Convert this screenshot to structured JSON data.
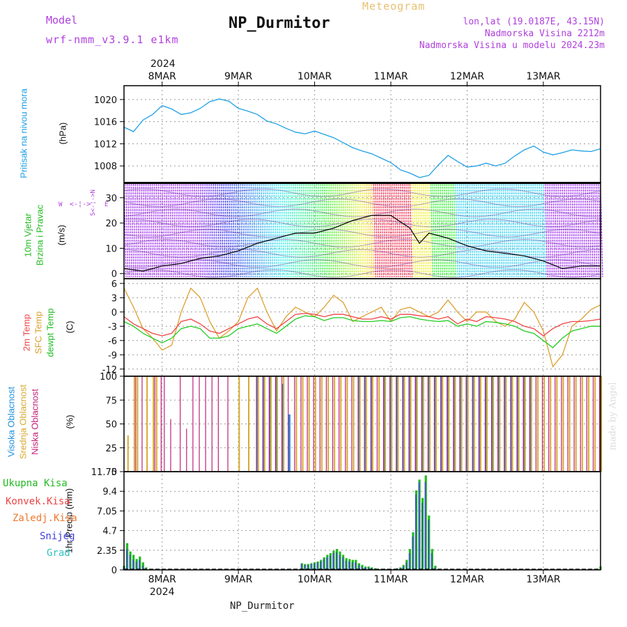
{
  "header": {
    "model_label": "Model",
    "model_name": "wrf-nmm_v3.9.1 e1km",
    "title": "NP_Durmitor",
    "meteogram_label": "Meteogram",
    "coords": "lon,lat (19.0187E, 43.15N)",
    "elevation": "Nadmorska Visina 2212m",
    "model_elevation": "Nadmorska Visina u modelu 2024.23m",
    "year": "2024",
    "bottom_station": "NP_Durmitor",
    "credit": "made by Angel"
  },
  "colors": {
    "pressure": "#1ea0e6",
    "temp2m": "#ee4444",
    "sfc_temp": "#dca030",
    "dewpt": "#22cc22",
    "high_cloud": "#1e90e0",
    "mid_cloud": "#d6aa30",
    "low_cloud": "#c0207a",
    "total_precip": "#22bb22",
    "convective": "#ee4444",
    "freezing": "#f07830",
    "snow": "#4040dd",
    "hail": "#30c0c0",
    "wind_legend": "#b040dd"
  },
  "x_axis": {
    "day_labels": [
      "8MAR",
      "9MAR",
      "10MAR",
      "11MAR",
      "12MAR",
      "13MAR"
    ],
    "year": "2024"
  },
  "panels": {
    "pressure": {
      "label": "Pritisak na nivou mora",
      "unit": "(hPa)",
      "ticks": [
        "1020",
        "1016",
        "1012",
        "1008"
      ]
    },
    "wind": {
      "label1": "10m Vjetar",
      "label2": "Brzina i Pravac",
      "unit": "(m/s)",
      "ticks": [
        "30",
        "20",
        "10",
        "0"
      ],
      "compass_w": "W",
      "compass_e": "E",
      "compass_n": "N",
      "compass_s": "S"
    },
    "temp": {
      "label1": "2m Temp",
      "label2": "SFC Temp",
      "label3": "dewpt Temp",
      "unit": "(C)",
      "ticks": [
        "6",
        "3",
        "0",
        "-3",
        "-6",
        "-9",
        "-12"
      ]
    },
    "cloud": {
      "label1": "Visoka Oblacnost",
      "label2": "Srednja Oblacnost",
      "label3": "Niska Oblacnost",
      "unit": "(%)",
      "ticks": [
        "100",
        "75",
        "50",
        "25",
        "0"
      ]
    },
    "precip": {
      "unit": "1hr Precip (mm)",
      "ticks": [
        "11.75",
        "9.4",
        "7.05",
        "4.7",
        "2.35",
        "0"
      ],
      "legend": [
        "Ukupna Kisa",
        "Konvek.Kisa",
        "Zaledj.Kisa",
        "Snijeg",
        "Grad"
      ]
    }
  },
  "chart_data": [
    {
      "type": "line",
      "title": "Pritisak na nivou mora",
      "ylabel": "(hPa)",
      "ylim": [
        1005,
        1022.5
      ],
      "x_hours": [
        0,
        3,
        6,
        9,
        12,
        15,
        18,
        21,
        24,
        27,
        30,
        33,
        36,
        39,
        42,
        45,
        48,
        51,
        54,
        57,
        60,
        63,
        66,
        69,
        72,
        75,
        78,
        81,
        84,
        87,
        90,
        93,
        96,
        99,
        102,
        105,
        108,
        111,
        114,
        117,
        120,
        123,
        126,
        129,
        132,
        135,
        138,
        141,
        144,
        147,
        150
      ],
      "series": [
        {
          "name": "Pritisak na nivou mora",
          "values": [
            1015,
            1014.2,
            1016.3,
            1017.3,
            1018.9,
            1018.3,
            1017.3,
            1017.6,
            1018.4,
            1019.6,
            1020.1,
            1019.7,
            1018.4,
            1017.9,
            1017.3,
            1016.1,
            1015.6,
            1014.8,
            1014.1,
            1013.8,
            1014.3,
            1013.7,
            1013.1,
            1012.2,
            1011.3,
            1010.7,
            1010.2,
            1009.4,
            1008.6,
            1007.3,
            1006.7,
            1005.9,
            1006.3,
            1008.2,
            1009.9,
            1008.8,
            1007.8,
            1008.0,
            1008.5,
            1008.0,
            1008.5,
            1009.8,
            1010.9,
            1011.6,
            1010.5,
            1010.0,
            1010.4,
            1010.9,
            1010.7,
            1010.6,
            1011.1
          ]
        }
      ]
    },
    {
      "type": "line",
      "title": "10m Vjetar Brzina i Pravac",
      "ylabel": "(m/s)",
      "ylim": [
        -2,
        36
      ],
      "x_hours": [
        0,
        6,
        12,
        18,
        24,
        30,
        36,
        42,
        48,
        54,
        60,
        66,
        72,
        78,
        84,
        90,
        93,
        96,
        102,
        108,
        114,
        120,
        126,
        132,
        138,
        144,
        150
      ],
      "series": [
        {
          "name": "Brzina",
          "values": [
            2,
            1,
            3,
            4,
            6,
            7,
            9,
            12,
            14,
            16,
            16,
            18,
            21,
            23,
            23,
            18,
            12,
            16,
            14,
            11,
            9,
            8,
            7,
            5,
            2,
            3,
            3
          ]
        }
      ]
    },
    {
      "type": "line",
      "title": "Temperatura",
      "ylabel": "(C)",
      "ylim": [
        -13.5,
        7
      ],
      "x_hours": [
        0,
        3,
        6,
        9,
        12,
        15,
        18,
        21,
        24,
        27,
        30,
        33,
        36,
        39,
        42,
        45,
        48,
        51,
        54,
        57,
        60,
        63,
        66,
        69,
        72,
        75,
        78,
        81,
        84,
        87,
        90,
        93,
        96,
        99,
        102,
        105,
        108,
        111,
        114,
        117,
        120,
        123,
        126,
        129,
        132,
        135,
        138,
        141,
        144,
        147,
        150
      ],
      "series": [
        {
          "name": "2m Temp",
          "values": [
            -1,
            -2.5,
            -3.5,
            -4.5,
            -5,
            -4.5,
            -2,
            -1.5,
            -2.5,
            -4,
            -4.5,
            -3.5,
            -2.5,
            -1.5,
            -1,
            -2.5,
            -3.5,
            -2,
            -0.5,
            -0.3,
            -0.5,
            -1,
            -0.5,
            -0.5,
            -1,
            -1.5,
            -1.5,
            -1,
            -1.5,
            -0.5,
            -0.5,
            -0.8,
            -1,
            -1.5,
            -1,
            -2.5,
            -1.5,
            -2,
            -1,
            -1.2,
            -1.5,
            -2,
            -3,
            -3.5,
            -5,
            -3.5,
            -2.5,
            -2,
            -2,
            -1.8,
            -1.5
          ]
        },
        {
          "name": "SFC Temp",
          "values": [
            5,
            1,
            -3.5,
            -5.5,
            -8,
            -7,
            0,
            5,
            3,
            -2,
            -5.5,
            -4,
            -2,
            3,
            5,
            0,
            -4,
            -1,
            1,
            0,
            -1,
            1,
            3.5,
            2,
            -2,
            -1,
            0,
            1,
            -2,
            0.5,
            1,
            0,
            -1,
            0,
            2.5,
            0,
            -2,
            0,
            0,
            -2,
            -3,
            -1.5,
            2,
            0,
            -4,
            -11.5,
            -9,
            -3,
            -1.5,
            0.5,
            1.5
          ]
        },
        {
          "name": "dewpt Temp",
          "values": [
            -2,
            -3,
            -4.5,
            -5.5,
            -6.5,
            -5.5,
            -3.5,
            -3,
            -3.5,
            -5.5,
            -5.5,
            -5,
            -3.5,
            -3,
            -2.5,
            -3.5,
            -4.5,
            -3,
            -1.5,
            -0.8,
            -1,
            -1.8,
            -1.2,
            -1.2,
            -1.8,
            -2,
            -2,
            -1.8,
            -2,
            -1.2,
            -1,
            -1.5,
            -1.8,
            -2,
            -1.8,
            -3,
            -2.5,
            -3,
            -2,
            -2.2,
            -2.5,
            -3,
            -4,
            -4.5,
            -6,
            -7.5,
            -5.5,
            -4,
            -3.5,
            -3,
            -3
          ]
        }
      ]
    },
    {
      "type": "bar",
      "title": "Oblacnost",
      "ylabel": "(%)",
      "ylim": [
        0,
        100
      ],
      "x_hours": [
        1,
        3,
        4,
        6,
        7,
        9,
        10,
        12,
        13,
        15,
        18,
        20,
        22,
        24,
        26,
        28,
        30,
        33,
        36,
        39,
        42,
        44,
        46,
        48,
        50,
        52,
        54,
        56,
        58,
        60,
        62,
        64,
        66,
        68,
        70,
        72,
        74,
        76,
        78,
        80,
        82,
        84,
        86,
        88,
        90,
        92,
        94,
        96,
        98,
        100,
        102,
        104,
        106,
        108,
        110,
        112,
        114,
        116,
        118,
        120,
        122,
        124,
        126,
        128,
        130,
        132,
        134,
        136,
        138,
        140,
        142,
        144,
        146,
        148,
        150
      ],
      "series": [
        {
          "name": "Visoka Oblacnost",
          "values": [
            0,
            0,
            0,
            0,
            0,
            0,
            0,
            0,
            0,
            0,
            0,
            0,
            0,
            0,
            0,
            0,
            0,
            0,
            0,
            0,
            100,
            100,
            100,
            100,
            92,
            60,
            0,
            0,
            0,
            0,
            0,
            0,
            0,
            0,
            0,
            0,
            100,
            100,
            100,
            0,
            100,
            100,
            100,
            100,
            100,
            100,
            100,
            100,
            100,
            100,
            100,
            100,
            100,
            100,
            100,
            100,
            100,
            100,
            100,
            100,
            100,
            100,
            100,
            100,
            0,
            0,
            0,
            0,
            0,
            0,
            0,
            0,
            0,
            0,
            0
          ]
        },
        {
          "name": "Srednja Oblacnost",
          "values": [
            38,
            100,
            100,
            0,
            100,
            100,
            100,
            0,
            0,
            0,
            0,
            0,
            0,
            0,
            0,
            0,
            0,
            0,
            100,
            100,
            100,
            100,
            100,
            100,
            100,
            0,
            100,
            100,
            100,
            100,
            100,
            100,
            100,
            100,
            100,
            100,
            100,
            100,
            100,
            100,
            100,
            100,
            100,
            100,
            100,
            100,
            100,
            100,
            100,
            100,
            100,
            100,
            100,
            100,
            100,
            100,
            100,
            100,
            100,
            100,
            100,
            100,
            100,
            100,
            100,
            100,
            100,
            100,
            100,
            100,
            100,
            100,
            100,
            100,
            100
          ]
        },
        {
          "name": "Niska Oblacnost",
          "values": [
            0,
            0,
            100,
            100,
            0,
            0,
            100,
            100,
            100,
            55,
            100,
            45,
            100,
            100,
            100,
            100,
            100,
            100,
            0,
            0,
            100,
            100,
            100,
            100,
            100,
            100,
            100,
            100,
            100,
            100,
            100,
            100,
            100,
            100,
            100,
            100,
            100,
            100,
            100,
            100,
            100,
            100,
            100,
            100,
            100,
            100,
            100,
            100,
            100,
            100,
            100,
            100,
            100,
            100,
            100,
            100,
            100,
            100,
            100,
            100,
            100,
            100,
            100,
            100,
            100,
            100,
            100,
            100,
            100,
            100,
            100,
            100,
            100,
            100,
            100
          ]
        }
      ]
    },
    {
      "type": "bar",
      "title": "1hr Precip",
      "ylabel": "(mm)",
      "ylim": [
        0,
        11.75
      ],
      "x_hours": [
        0,
        1,
        2,
        3,
        4,
        5,
        6,
        7,
        56,
        57,
        58,
        59,
        60,
        61,
        62,
        63,
        64,
        65,
        66,
        67,
        68,
        69,
        70,
        71,
        72,
        73,
        74,
        75,
        76,
        77,
        78,
        79,
        80,
        81,
        82,
        83,
        84,
        85,
        86,
        87,
        88,
        89,
        90,
        91,
        92,
        93,
        94,
        95,
        96,
        97,
        98,
        99,
        100,
        101,
        102,
        103,
        104,
        105,
        106,
        107,
        108,
        109,
        110,
        111,
        112,
        113,
        114,
        115,
        116,
        117,
        118,
        119,
        120,
        121,
        122,
        123,
        124,
        125,
        126,
        127,
        128,
        129,
        130,
        131,
        132,
        133,
        134,
        135,
        136,
        137,
        138,
        139,
        140,
        141,
        142,
        143,
        144,
        145,
        146,
        147,
        148,
        149,
        150
      ],
      "series": [
        {
          "name": "Ukupna Kisa",
          "values": [
            0.5,
            3.2,
            2.2,
            1.8,
            1.3,
            1.6,
            0.9,
            0.3,
            0.8,
            0.7,
            0.7,
            0.8,
            0.9,
            1,
            1.2,
            1.5,
            1.8,
            2.0,
            2.3,
            2.5,
            2.2,
            1.8,
            1.4,
            1.3,
            1.2,
            1.2,
            0.8,
            0.6,
            0.4,
            0.4,
            0.3,
            0.2,
            0.1,
            0.1,
            0.1,
            0.1,
            0.1,
            0.1,
            0.2,
            0.3,
            0.6,
            1.2,
            2.5,
            4.5,
            9.5,
            10.8,
            8.6,
            11.3,
            6.5,
            2.5,
            0.5,
            0,
            0,
            0,
            0,
            0,
            0,
            0,
            0,
            0,
            0,
            0,
            0,
            0,
            0,
            0,
            0,
            0,
            0,
            0,
            0,
            0,
            0,
            0,
            0,
            0,
            0,
            0,
            0,
            0,
            0,
            0,
            0,
            0,
            0,
            0,
            0,
            0,
            0,
            0,
            0,
            0,
            0,
            0,
            0,
            0,
            0,
            0,
            0,
            0,
            0,
            0,
            0.4
          ]
        },
        {
          "name": "Snijeg",
          "values": [
            0.3,
            2.5,
            1.8,
            1.2,
            1.0,
            1.2,
            0.5,
            0.2,
            0.7,
            0.6,
            0.6,
            0.7,
            0.8,
            0.9,
            1.0,
            1.3,
            1.5,
            1.7,
            2.0,
            2.1,
            1.8,
            1.5,
            1.1,
            1.0,
            0.9,
            0.9,
            0.6,
            0.4,
            0.3,
            0.3,
            0.2,
            0.1,
            0.1,
            0.1,
            0.1,
            0.1,
            0.1,
            0.1,
            0.1,
            0.2,
            0.4,
            0.9,
            2.0,
            4.0,
            9.0,
            10.5,
            8.0,
            10.5,
            6.0,
            2.0,
            0.3,
            0,
            0,
            0,
            0,
            0,
            0,
            0,
            0,
            0,
            0,
            0,
            0,
            0,
            0,
            0,
            0,
            0,
            0,
            0,
            0,
            0,
            0,
            0,
            0,
            0,
            0,
            0,
            0,
            0,
            0,
            0,
            0,
            0,
            0,
            0,
            0,
            0,
            0,
            0,
            0,
            0,
            0,
            0,
            0,
            0,
            0,
            0,
            0,
            0,
            0,
            0,
            0
          ]
        }
      ]
    }
  ]
}
